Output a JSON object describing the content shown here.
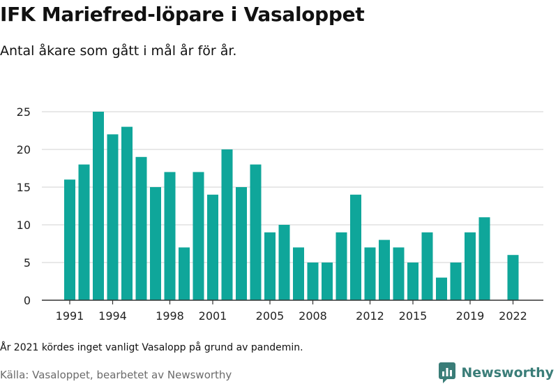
{
  "header": {
    "title": "IFK Mariefred-löpare i Vasaloppet",
    "subtitle": "Antal åkare som gått i mål år för år."
  },
  "footer": {
    "note": "År 2021 kördes inget vanligt Vasalopp på grund av pandemin.",
    "source": "Källa: Vasaloppet, bearbetet av Newsworthy",
    "brand": "Newsworthy",
    "brand_color": "#3a7d78"
  },
  "colors": {
    "bar": "#0fa69a",
    "grid": "#d9d9d9",
    "axis": "#333333"
  },
  "chart_data": {
    "type": "bar",
    "title": "",
    "xlabel": "",
    "ylabel": "",
    "ylim": [
      0,
      25
    ],
    "yticks": [
      0,
      5,
      10,
      15,
      20,
      25
    ],
    "xticks": [
      1991,
      1994,
      1998,
      2001,
      2005,
      2008,
      2012,
      2015,
      2019,
      2022
    ],
    "grid": true,
    "categories": [
      1991,
      1992,
      1993,
      1994,
      1995,
      1996,
      1997,
      1998,
      1999,
      2000,
      2001,
      2002,
      2003,
      2004,
      2005,
      2006,
      2007,
      2008,
      2009,
      2010,
      2011,
      2012,
      2013,
      2014,
      2015,
      2016,
      2017,
      2018,
      2019,
      2020,
      2021,
      2022
    ],
    "values": [
      16,
      18,
      25,
      22,
      23,
      19,
      15,
      17,
      7,
      17,
      14,
      20,
      15,
      18,
      9,
      10,
      7,
      5,
      5,
      9,
      14,
      7,
      8,
      7,
      5,
      9,
      3,
      5,
      9,
      11,
      null,
      6
    ]
  }
}
